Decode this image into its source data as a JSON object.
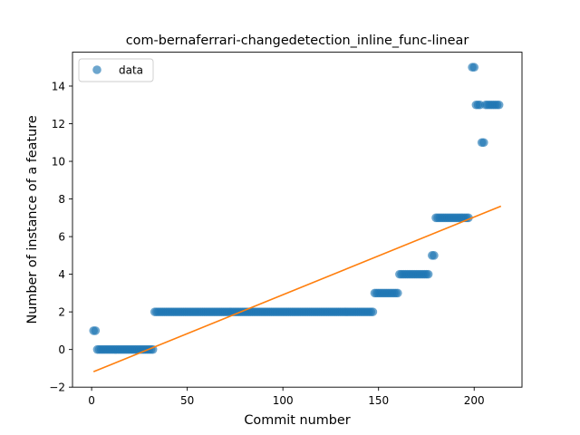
{
  "chart_data": {
    "type": "scatter",
    "title": "com-bernaferrari-changedetection_inline_func-linear",
    "xlabel": "Commit number",
    "ylabel": "Number of instance of a feature",
    "xlim": [
      -10,
      225
    ],
    "ylim": [
      -2,
      15.8
    ],
    "xticks": [
      0,
      50,
      100,
      150,
      200
    ],
    "yticks": [
      -2,
      0,
      2,
      4,
      6,
      8,
      10,
      12,
      14
    ],
    "grid": false,
    "legend": {
      "position": "top-left",
      "entries": [
        "data"
      ]
    },
    "colors": {
      "data": "#1f77b4",
      "fit": "#ff7f0e"
    },
    "series": [
      {
        "name": "data",
        "kind": "points",
        "runs": [
          {
            "x_start": 1,
            "x_end": 3,
            "y": 1
          },
          {
            "x_start": 3,
            "x_end": 33,
            "y": 0
          },
          {
            "x_start": 33,
            "x_end": 148,
            "y": 2
          },
          {
            "x_start": 148,
            "x_end": 161,
            "y": 3
          },
          {
            "x_start": 161,
            "x_end": 177,
            "y": 4
          },
          {
            "x_start": 178,
            "x_end": 180,
            "y": 5
          },
          {
            "x_start": 180,
            "x_end": 198,
            "y": 7
          },
          {
            "x_start": 199,
            "x_end": 201,
            "y": 15
          },
          {
            "x_start": 201,
            "x_end": 204,
            "y": 13
          },
          {
            "x_start": 204,
            "x_end": 206,
            "y": 11
          },
          {
            "x_start": 206,
            "x_end": 214,
            "y": 13
          }
        ]
      },
      {
        "kind": "line",
        "x": [
          1,
          214
        ],
        "y": [
          -1.18,
          7.62
        ]
      }
    ]
  }
}
